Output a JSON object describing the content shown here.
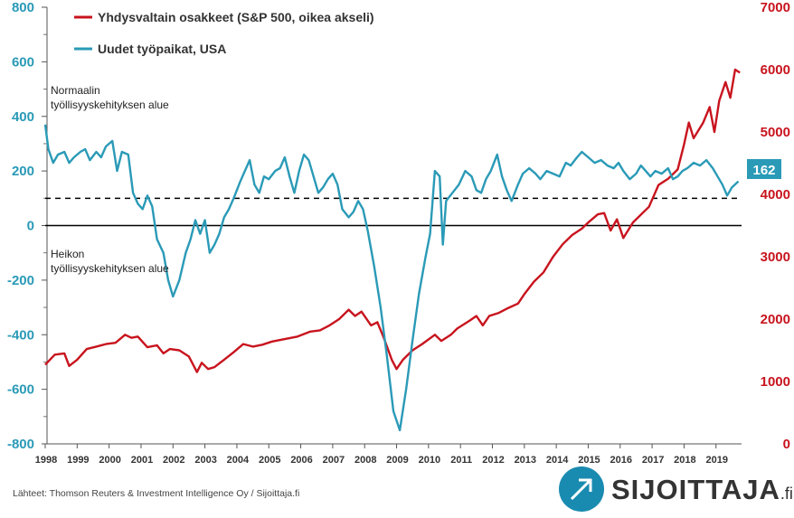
{
  "colors": {
    "payrolls": "#2a9ab7",
    "sp500": "#c8141e",
    "badge_bg": "#2a9ab7"
  },
  "chart_data": {
    "type": "line",
    "x_ticks": [
      "1998",
      "1999",
      "2000",
      "2001",
      "2002",
      "2003",
      "2004",
      "2005",
      "2006",
      "2007",
      "2008",
      "2009",
      "2010",
      "2011",
      "2012",
      "2013",
      "2014",
      "2015",
      "2016",
      "2017",
      "2018",
      "2019"
    ],
    "left_axis": {
      "ticks": [
        800,
        600,
        400,
        200,
        0,
        -200,
        -400,
        -600,
        -800
      ],
      "ylim": [
        -800,
        800
      ]
    },
    "right_axis": {
      "ticks": [
        7000,
        6000,
        5000,
        4000,
        3000,
        2000,
        1000,
        0
      ],
      "ylim": [
        0,
        7000
      ]
    },
    "reference_lines": [
      {
        "axis": "left",
        "value": 100,
        "style": "dashed"
      },
      {
        "axis": "left",
        "value": 0,
        "style": "solid"
      }
    ],
    "series": [
      {
        "name": "Yhdysvaltain osakkeet (S&P 500, oikea akseli)",
        "axis": "right",
        "points": [
          [
            1998.0,
            1270
          ],
          [
            1998.3,
            1430
          ],
          [
            1998.6,
            1450
          ],
          [
            1998.75,
            1250
          ],
          [
            1999.0,
            1350
          ],
          [
            1999.3,
            1520
          ],
          [
            1999.6,
            1560
          ],
          [
            1999.9,
            1600
          ],
          [
            2000.2,
            1620
          ],
          [
            2000.5,
            1750
          ],
          [
            2000.7,
            1700
          ],
          [
            2000.9,
            1720
          ],
          [
            2001.2,
            1550
          ],
          [
            2001.5,
            1580
          ],
          [
            2001.7,
            1450
          ],
          [
            2001.9,
            1520
          ],
          [
            2002.2,
            1500
          ],
          [
            2002.5,
            1400
          ],
          [
            2002.75,
            1150
          ],
          [
            2002.9,
            1300
          ],
          [
            2003.1,
            1200
          ],
          [
            2003.3,
            1230
          ],
          [
            2003.6,
            1350
          ],
          [
            2003.9,
            1470
          ],
          [
            2004.2,
            1600
          ],
          [
            2004.5,
            1560
          ],
          [
            2004.8,
            1590
          ],
          [
            2005.1,
            1640
          ],
          [
            2005.5,
            1680
          ],
          [
            2005.9,
            1720
          ],
          [
            2006.3,
            1800
          ],
          [
            2006.6,
            1820
          ],
          [
            2006.9,
            1900
          ],
          [
            2007.2,
            2000
          ],
          [
            2007.5,
            2150
          ],
          [
            2007.7,
            2050
          ],
          [
            2007.9,
            2120
          ],
          [
            2008.2,
            1900
          ],
          [
            2008.4,
            1950
          ],
          [
            2008.6,
            1700
          ],
          [
            2008.85,
            1350
          ],
          [
            2009.0,
            1200
          ],
          [
            2009.2,
            1350
          ],
          [
            2009.5,
            1500
          ],
          [
            2009.8,
            1600
          ],
          [
            2010.2,
            1750
          ],
          [
            2010.4,
            1650
          ],
          [
            2010.7,
            1750
          ],
          [
            2010.9,
            1850
          ],
          [
            2011.3,
            1980
          ],
          [
            2011.5,
            2050
          ],
          [
            2011.7,
            1900
          ],
          [
            2011.9,
            2050
          ],
          [
            2012.2,
            2100
          ],
          [
            2012.5,
            2180
          ],
          [
            2012.8,
            2250
          ],
          [
            2013.0,
            2400
          ],
          [
            2013.3,
            2600
          ],
          [
            2013.6,
            2750
          ],
          [
            2013.9,
            3000
          ],
          [
            2014.2,
            3200
          ],
          [
            2014.5,
            3350
          ],
          [
            2014.8,
            3450
          ],
          [
            2015.0,
            3550
          ],
          [
            2015.3,
            3680
          ],
          [
            2015.5,
            3700
          ],
          [
            2015.7,
            3420
          ],
          [
            2015.9,
            3600
          ],
          [
            2016.1,
            3300
          ],
          [
            2016.4,
            3550
          ],
          [
            2016.7,
            3700
          ],
          [
            2016.9,
            3800
          ],
          [
            2017.2,
            4150
          ],
          [
            2017.5,
            4250
          ],
          [
            2017.8,
            4400
          ],
          [
            2018.0,
            4800
          ],
          [
            2018.15,
            5150
          ],
          [
            2018.3,
            4900
          ],
          [
            2018.6,
            5150
          ],
          [
            2018.8,
            5400
          ],
          [
            2018.95,
            5000
          ],
          [
            2019.1,
            5500
          ],
          [
            2019.3,
            5800
          ],
          [
            2019.45,
            5550
          ],
          [
            2019.6,
            6000
          ],
          [
            2019.75,
            5950
          ]
        ]
      },
      {
        "name": "Uudet työpaikat, USA",
        "axis": "left",
        "points": [
          [
            1998.0,
            370
          ],
          [
            1998.1,
            280
          ],
          [
            1998.25,
            230
          ],
          [
            1998.4,
            260
          ],
          [
            1998.6,
            270
          ],
          [
            1998.75,
            230
          ],
          [
            1998.9,
            250
          ],
          [
            1999.1,
            270
          ],
          [
            1999.25,
            280
          ],
          [
            1999.4,
            240
          ],
          [
            1999.6,
            270
          ],
          [
            1999.75,
            250
          ],
          [
            1999.9,
            290
          ],
          [
            2000.1,
            310
          ],
          [
            2000.25,
            200
          ],
          [
            2000.4,
            270
          ],
          [
            2000.6,
            260
          ],
          [
            2000.75,
            120
          ],
          [
            2000.9,
            80
          ],
          [
            2001.05,
            60
          ],
          [
            2001.2,
            110
          ],
          [
            2001.35,
            70
          ],
          [
            2001.5,
            -50
          ],
          [
            2001.7,
            -100
          ],
          [
            2001.85,
            -200
          ],
          [
            2002.0,
            -260
          ],
          [
            2002.2,
            -200
          ],
          [
            2002.4,
            -100
          ],
          [
            2002.55,
            -50
          ],
          [
            2002.7,
            20
          ],
          [
            2002.85,
            -30
          ],
          [
            2003.0,
            20
          ],
          [
            2003.15,
            -100
          ],
          [
            2003.3,
            -70
          ],
          [
            2003.45,
            -30
          ],
          [
            2003.6,
            30
          ],
          [
            2003.75,
            60
          ],
          [
            2003.9,
            100
          ],
          [
            2004.1,
            160
          ],
          [
            2004.25,
            200
          ],
          [
            2004.4,
            240
          ],
          [
            2004.55,
            150
          ],
          [
            2004.7,
            120
          ],
          [
            2004.85,
            180
          ],
          [
            2005.0,
            170
          ],
          [
            2005.2,
            200
          ],
          [
            2005.35,
            210
          ],
          [
            2005.5,
            250
          ],
          [
            2005.65,
            180
          ],
          [
            2005.8,
            120
          ],
          [
            2005.95,
            200
          ],
          [
            2006.1,
            260
          ],
          [
            2006.25,
            240
          ],
          [
            2006.4,
            180
          ],
          [
            2006.55,
            120
          ],
          [
            2006.7,
            140
          ],
          [
            2006.85,
            170
          ],
          [
            2007.0,
            190
          ],
          [
            2007.15,
            150
          ],
          [
            2007.3,
            60
          ],
          [
            2007.5,
            30
          ],
          [
            2007.65,
            50
          ],
          [
            2007.8,
            90
          ],
          [
            2007.95,
            60
          ],
          [
            2008.1,
            -20
          ],
          [
            2008.3,
            -150
          ],
          [
            2008.5,
            -300
          ],
          [
            2008.7,
            -480
          ],
          [
            2008.9,
            -680
          ],
          [
            2009.1,
            -750
          ],
          [
            2009.3,
            -600
          ],
          [
            2009.5,
            -420
          ],
          [
            2009.7,
            -250
          ],
          [
            2009.9,
            -120
          ],
          [
            2010.05,
            -30
          ],
          [
            2010.2,
            200
          ],
          [
            2010.35,
            180
          ],
          [
            2010.45,
            -70
          ],
          [
            2010.55,
            90
          ],
          [
            2010.75,
            120
          ],
          [
            2010.95,
            150
          ],
          [
            2011.15,
            200
          ],
          [
            2011.35,
            180
          ],
          [
            2011.5,
            130
          ],
          [
            2011.65,
            120
          ],
          [
            2011.8,
            170
          ],
          [
            2011.95,
            200
          ],
          [
            2012.15,
            260
          ],
          [
            2012.3,
            180
          ],
          [
            2012.45,
            130
          ],
          [
            2012.6,
            90
          ],
          [
            2012.8,
            150
          ],
          [
            2012.95,
            190
          ],
          [
            2013.15,
            210
          ],
          [
            2013.35,
            190
          ],
          [
            2013.5,
            170
          ],
          [
            2013.7,
            200
          ],
          [
            2013.9,
            190
          ],
          [
            2014.1,
            180
          ],
          [
            2014.3,
            230
          ],
          [
            2014.45,
            220
          ],
          [
            2014.65,
            250
          ],
          [
            2014.8,
            270
          ],
          [
            2015.0,
            250
          ],
          [
            2015.2,
            230
          ],
          [
            2015.4,
            240
          ],
          [
            2015.6,
            220
          ],
          [
            2015.8,
            210
          ],
          [
            2015.95,
            230
          ],
          [
            2016.1,
            200
          ],
          [
            2016.3,
            170
          ],
          [
            2016.5,
            190
          ],
          [
            2016.65,
            220
          ],
          [
            2016.8,
            200
          ],
          [
            2016.95,
            180
          ],
          [
            2017.1,
            200
          ],
          [
            2017.3,
            190
          ],
          [
            2017.5,
            210
          ],
          [
            2017.65,
            170
          ],
          [
            2017.8,
            180
          ],
          [
            2017.95,
            200
          ],
          [
            2018.1,
            210
          ],
          [
            2018.3,
            230
          ],
          [
            2018.5,
            220
          ],
          [
            2018.7,
            240
          ],
          [
            2018.9,
            210
          ],
          [
            2019.05,
            180
          ],
          [
            2019.2,
            150
          ],
          [
            2019.35,
            110
          ],
          [
            2019.5,
            140
          ],
          [
            2019.7,
            162
          ]
        ]
      }
    ],
    "badge_value": "162",
    "annotations": [
      {
        "lines": [
          "Normaalin",
          "työllisyyskehityksen alue"
        ]
      },
      {
        "lines": [
          "Heikon",
          "työllisyyskehityksen alue"
        ]
      }
    ]
  },
  "source_text": "Lähteet: Thomson Reuters & Investment Intelligence Oy / Sijoittaja.fi",
  "logo": {
    "main": "SIJOITTAJA",
    "suffix": ".fi"
  }
}
